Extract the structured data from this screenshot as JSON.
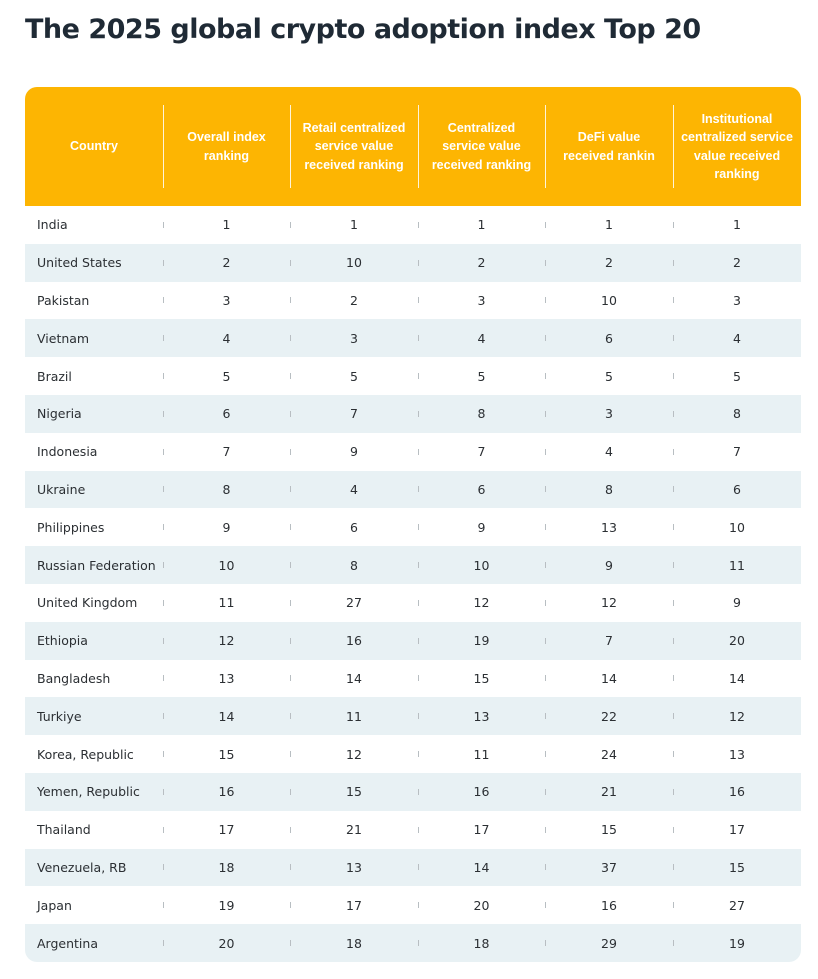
{
  "title": "The 2025 global crypto adoption index Top 20",
  "colors": {
    "header_bg": "#fdb502",
    "header_text": "#ffffff",
    "row_alt_bg": "#e8f1f4",
    "title_text": "#1f2a35"
  },
  "table": {
    "headers": [
      "Country",
      "Overall index ranking",
      "Retail centralized service value received ranking",
      "Centralized service value received ranking",
      "DeFi value received rankin",
      "Institutional centralized service value received ranking"
    ],
    "rows": [
      [
        "India",
        "1",
        "1",
        "1",
        "1",
        "1"
      ],
      [
        "United States",
        "2",
        "10",
        "2",
        "2",
        "2"
      ],
      [
        "Pakistan",
        "3",
        "2",
        "3",
        "10",
        "3"
      ],
      [
        "Vietnam",
        "4",
        "3",
        "4",
        "6",
        "4"
      ],
      [
        "Brazil",
        "5",
        "5",
        "5",
        "5",
        "5"
      ],
      [
        "Nigeria",
        "6",
        "7",
        "8",
        "3",
        "8"
      ],
      [
        "Indonesia",
        "7",
        "9",
        "7",
        "4",
        "7"
      ],
      [
        "Ukraine",
        "8",
        "4",
        "6",
        "8",
        "6"
      ],
      [
        "Philippines",
        "9",
        "6",
        "9",
        "13",
        "10"
      ],
      [
        "Russian Federation",
        "10",
        "8",
        "10",
        "9",
        "11"
      ],
      [
        "United Kingdom",
        "11",
        "27",
        "12",
        "12",
        "9"
      ],
      [
        "Ethiopia",
        "12",
        "16",
        "19",
        "7",
        "20"
      ],
      [
        "Bangladesh",
        "13",
        "14",
        "15",
        "14",
        "14"
      ],
      [
        "Turkiye",
        "14",
        "11",
        "13",
        "22",
        "12"
      ],
      [
        "Korea, Republic",
        "15",
        "12",
        "11",
        "24",
        "13"
      ],
      [
        "Yemen, Republic",
        "16",
        "15",
        "16",
        "21",
        "16"
      ],
      [
        "Thailand",
        "17",
        "21",
        "17",
        "15",
        "17"
      ],
      [
        "Venezuela, RB",
        "18",
        "13",
        "14",
        "37",
        "15"
      ],
      [
        "Japan",
        "19",
        "17",
        "20",
        "16",
        "27"
      ],
      [
        "Argentina",
        "20",
        "18",
        "18",
        "29",
        "19"
      ]
    ]
  }
}
